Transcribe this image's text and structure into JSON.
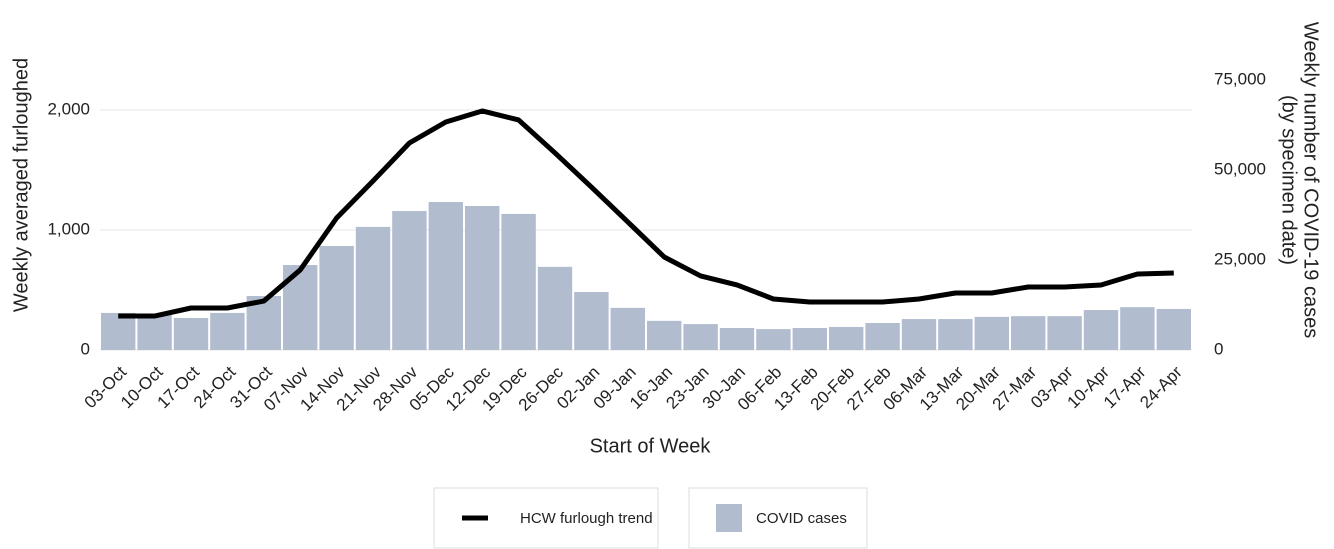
{
  "chart_data": {
    "type": "combo",
    "x_label": "Start of Week",
    "y_label": "Weekly averaged furloughed",
    "y2_label": [
      "Weekly number of COVID-19 cases",
      "(by specimen date)"
    ],
    "categories": [
      "03-Oct",
      "10-Oct",
      "17-Oct",
      "24-Oct",
      "31-Oct",
      "07-Nov",
      "14-Nov",
      "21-Nov",
      "28-Nov",
      "05-Dec",
      "12-Dec",
      "19-Dec",
      "26-Dec",
      "02-Jan",
      "09-Jan",
      "16-Jan",
      "23-Jan",
      "30-Jan",
      "06-Feb",
      "13-Feb",
      "20-Feb",
      "27-Feb",
      "06-Mar",
      "13-Mar",
      "20-Mar",
      "27-Mar",
      "03-Apr",
      "10-Apr",
      "17-Apr",
      "24-Apr"
    ],
    "series": [
      {
        "name": "HCW furlough trend",
        "type": "line",
        "color": "#000000",
        "values": [
          283,
          283,
          350,
          350,
          408,
          667,
          1100,
          1408,
          1725,
          1900,
          1992,
          1917,
          1642,
          1358,
          1067,
          775,
          617,
          542,
          425,
          400,
          400,
          400,
          425,
          475,
          475,
          525,
          525,
          542,
          633,
          642
        ]
      },
      {
        "name": "COVID cases",
        "type": "bar",
        "axis": "y2",
        "color": "#b1bccf",
        "values": [
          10300,
          10000,
          8900,
          10300,
          15000,
          23600,
          28900,
          34200,
          38600,
          41100,
          40000,
          37800,
          23100,
          16100,
          11700,
          8100,
          7200,
          6100,
          5800,
          6100,
          6400,
          7500,
          8600,
          8600,
          9200,
          9400,
          9400,
          11100,
          11900,
          11400
        ]
      }
    ],
    "ylim": [
      0,
      2500
    ],
    "yticks": [
      0,
      {
        "value": 1000,
        "label": "1,000"
      },
      {
        "value": 2000,
        "label": "2,000"
      }
    ],
    "y2lim": [
      0,
      83333
    ],
    "y2ticks": [
      0,
      {
        "value": 25000,
        "label": "25,000"
      },
      {
        "value": 50000,
        "label": "50,000"
      },
      {
        "value": 75000,
        "label": "75,000"
      }
    ],
    "grid": true
  }
}
